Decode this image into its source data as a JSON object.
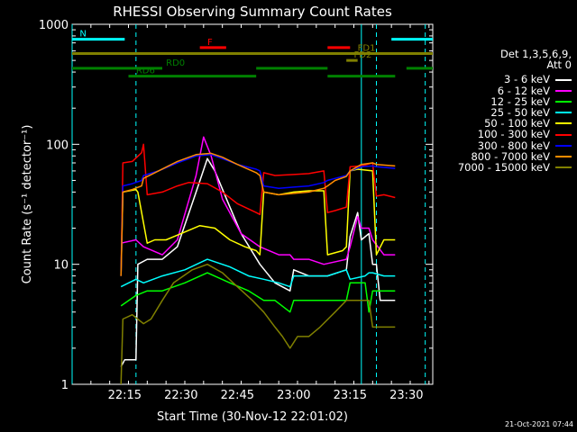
{
  "chart_data": {
    "type": "line",
    "title": "RHESSI Observing Summary Count Rates",
    "xlabel": "Start Time (30-Nov-12 22:01:02)",
    "ylabel": "Count Rate (s⁻¹ detector⁻¹)",
    "yscale": "log",
    "ylim": [
      1,
      1000
    ],
    "xlim": [
      0,
      96
    ],
    "x_unit": "minutes after 22:01:02",
    "xticks": [
      {
        "label": "22:15",
        "x": 14
      },
      {
        "label": "22:30",
        "x": 29
      },
      {
        "label": "22:45",
        "x": 44
      },
      {
        "label": "23:00",
        "x": 59
      },
      {
        "label": "23:15",
        "x": 74
      },
      {
        "label": "23:30",
        "x": 89
      }
    ],
    "yticks": [
      {
        "label": "1",
        "y": 1
      },
      {
        "label": "10",
        "y": 10
      },
      {
        "label": "100",
        "y": 100
      },
      {
        "label": "1000",
        "y": 1000
      }
    ],
    "series": [
      {
        "name": "3 - 6 keV",
        "color": "#ffffff",
        "points": [
          [
            13,
            1.4
          ],
          [
            14,
            1.6
          ],
          [
            17,
            1.6
          ],
          [
            17.5,
            10
          ],
          [
            20,
            11
          ],
          [
            24,
            11
          ],
          [
            28,
            14
          ],
          [
            33,
            40
          ],
          [
            36,
            76
          ],
          [
            38,
            60
          ],
          [
            42,
            30
          ],
          [
            45,
            18
          ],
          [
            50,
            10
          ],
          [
            54,
            7
          ],
          [
            58,
            6
          ],
          [
            59,
            9
          ],
          [
            63,
            8
          ],
          [
            68,
            8
          ],
          [
            73,
            9
          ],
          [
            74,
            17
          ],
          [
            76,
            27
          ],
          [
            77,
            16
          ],
          [
            79,
            18
          ],
          [
            80,
            10
          ],
          [
            81,
            10
          ],
          [
            82,
            5
          ],
          [
            86,
            5
          ]
        ]
      },
      {
        "name": "6 - 12 keV",
        "color": "#ff00ff",
        "points": [
          [
            13,
            15
          ],
          [
            17,
            16
          ],
          [
            19,
            14
          ],
          [
            24,
            12
          ],
          [
            28,
            16
          ],
          [
            33,
            55
          ],
          [
            35,
            115
          ],
          [
            37,
            80
          ],
          [
            40,
            35
          ],
          [
            45,
            18
          ],
          [
            50,
            14
          ],
          [
            55,
            12
          ],
          [
            58,
            12
          ],
          [
            59,
            11
          ],
          [
            63,
            11
          ],
          [
            67,
            10
          ],
          [
            73,
            11
          ],
          [
            74,
            14
          ],
          [
            76,
            25
          ],
          [
            77,
            20
          ],
          [
            79,
            20
          ],
          [
            80,
            16
          ],
          [
            83,
            12
          ],
          [
            86,
            12
          ]
        ]
      },
      {
        "name": "12 - 25 keV",
        "color": "#00ff00",
        "points": [
          [
            13,
            4.5
          ],
          [
            17,
            5.5
          ],
          [
            20,
            6
          ],
          [
            24,
            6
          ],
          [
            30,
            7
          ],
          [
            36,
            8.5
          ],
          [
            42,
            7
          ],
          [
            47,
            6
          ],
          [
            51,
            5
          ],
          [
            54,
            5
          ],
          [
            58,
            4
          ],
          [
            59,
            5
          ],
          [
            64,
            5
          ],
          [
            68,
            5
          ],
          [
            73,
            5
          ],
          [
            74,
            7
          ],
          [
            78,
            7
          ],
          [
            79,
            4
          ],
          [
            80,
            6
          ],
          [
            83,
            6
          ],
          [
            86,
            6
          ]
        ]
      },
      {
        "name": "25 - 50 keV",
        "color": "#00ffff",
        "points": [
          [
            13,
            6.5
          ],
          [
            17,
            7.5
          ],
          [
            19,
            7
          ],
          [
            24,
            8
          ],
          [
            30,
            9
          ],
          [
            36,
            11
          ],
          [
            42,
            9.5
          ],
          [
            47,
            8
          ],
          [
            51,
            7.5
          ],
          [
            55,
            7
          ],
          [
            58,
            6.5
          ],
          [
            59,
            8
          ],
          [
            63,
            8
          ],
          [
            68,
            8
          ],
          [
            73,
            9
          ],
          [
            74,
            7.5
          ],
          [
            78,
            8
          ],
          [
            79,
            8.5
          ],
          [
            80,
            8.5
          ],
          [
            83,
            8
          ],
          [
            86,
            8
          ]
        ]
      },
      {
        "name": "50 - 100 keV",
        "color": "#ffff00",
        "points": [
          [
            13,
            8
          ],
          [
            13.5,
            40
          ],
          [
            17,
            42
          ],
          [
            17.5,
            40
          ],
          [
            20,
            15
          ],
          [
            22,
            16
          ],
          [
            25,
            16
          ],
          [
            29,
            18
          ],
          [
            34,
            21
          ],
          [
            38,
            20
          ],
          [
            42,
            16
          ],
          [
            46,
            14
          ],
          [
            49,
            13
          ],
          [
            50,
            12
          ],
          [
            51,
            40
          ],
          [
            55,
            38
          ],
          [
            59,
            40
          ],
          [
            63,
            41
          ],
          [
            67,
            41
          ],
          [
            68,
            12
          ],
          [
            72,
            13
          ],
          [
            73,
            14
          ],
          [
            74,
            60
          ],
          [
            76,
            62
          ],
          [
            80,
            60
          ],
          [
            81,
            12
          ],
          [
            83,
            16
          ],
          [
            86,
            16
          ]
        ]
      },
      {
        "name": "100 - 300 keV",
        "color": "#ff0000",
        "points": [
          [
            13,
            8
          ],
          [
            13.5,
            70
          ],
          [
            16,
            72
          ],
          [
            18.5,
            85
          ],
          [
            19,
            100
          ],
          [
            20,
            38
          ],
          [
            24,
            40
          ],
          [
            28,
            45
          ],
          [
            31,
            48
          ],
          [
            36,
            47
          ],
          [
            40,
            40
          ],
          [
            44,
            32
          ],
          [
            49,
            27
          ],
          [
            50,
            26
          ],
          [
            51,
            58
          ],
          [
            54,
            55
          ],
          [
            59,
            56
          ],
          [
            63,
            57
          ],
          [
            67,
            60
          ],
          [
            68,
            27
          ],
          [
            70,
            28
          ],
          [
            73,
            30
          ],
          [
            74,
            65
          ],
          [
            77,
            66
          ],
          [
            80,
            70
          ],
          [
            81,
            37
          ],
          [
            83,
            38
          ],
          [
            86,
            36
          ]
        ]
      },
      {
        "name": "300 - 800 keV",
        "color": "#0000ff",
        "points": [
          [
            13,
            8
          ],
          [
            13.5,
            45
          ],
          [
            16,
            47
          ],
          [
            18.5,
            50
          ],
          [
            19,
            55
          ],
          [
            23,
            60
          ],
          [
            28,
            70
          ],
          [
            33,
            80
          ],
          [
            37,
            82
          ],
          [
            40,
            76
          ],
          [
            44,
            68
          ],
          [
            49,
            62
          ],
          [
            50,
            60
          ],
          [
            51,
            45
          ],
          [
            55,
            43
          ],
          [
            59,
            44
          ],
          [
            63,
            45
          ],
          [
            67,
            48
          ],
          [
            68,
            50
          ],
          [
            70,
            52
          ],
          [
            73,
            55
          ],
          [
            74,
            60
          ],
          [
            77,
            65
          ],
          [
            80,
            66
          ],
          [
            81,
            65
          ],
          [
            86,
            63
          ]
        ]
      },
      {
        "name": "800 - 7000 keV",
        "color": "#ff8c00",
        "points": [
          [
            13,
            8
          ],
          [
            13.5,
            40
          ],
          [
            16,
            42
          ],
          [
            18.5,
            45
          ],
          [
            19,
            52
          ],
          [
            23,
            60
          ],
          [
            28,
            72
          ],
          [
            33,
            82
          ],
          [
            37,
            84
          ],
          [
            40,
            78
          ],
          [
            44,
            68
          ],
          [
            49,
            58
          ],
          [
            50,
            55
          ],
          [
            51,
            40
          ],
          [
            55,
            38
          ],
          [
            59,
            39
          ],
          [
            63,
            40
          ],
          [
            67,
            43
          ],
          [
            68,
            45
          ],
          [
            70,
            50
          ],
          [
            73,
            54
          ],
          [
            74,
            60
          ],
          [
            77,
            68
          ],
          [
            80,
            70
          ],
          [
            81,
            68
          ],
          [
            86,
            66
          ]
        ]
      },
      {
        "name": "7000 - 15000 keV",
        "color": "#808000",
        "points": [
          [
            13,
            1
          ],
          [
            13.5,
            3.5
          ],
          [
            16,
            3.8
          ],
          [
            19,
            3.2
          ],
          [
            21,
            3.5
          ],
          [
            24,
            5
          ],
          [
            27,
            7
          ],
          [
            32,
            9
          ],
          [
            36,
            10
          ],
          [
            40,
            8.5
          ],
          [
            44,
            6.5
          ],
          [
            48,
            5
          ],
          [
            51,
            4
          ],
          [
            54,
            3
          ],
          [
            56,
            2.5
          ],
          [
            58,
            2
          ],
          [
            60,
            2.5
          ],
          [
            63,
            2.5
          ],
          [
            66,
            3
          ],
          [
            70,
            4
          ],
          [
            73,
            5
          ],
          [
            74,
            5
          ],
          [
            78,
            5
          ],
          [
            79,
            5
          ],
          [
            80,
            3
          ],
          [
            83,
            3
          ],
          [
            86,
            3
          ]
        ]
      }
    ],
    "flags": [
      {
        "label": "N",
        "color": "#00ffff",
        "y": 750,
        "segments": [
          [
            0,
            14
          ],
          [
            85,
            96
          ]
        ]
      },
      {
        "label": "F",
        "color": "#ff0000",
        "y": 640,
        "segments": [
          [
            34,
            41
          ],
          [
            68,
            74
          ]
        ]
      },
      {
        "label": "FD1",
        "color": "#808000",
        "y": 570,
        "segments": [
          [
            0,
            96
          ]
        ]
      },
      {
        "label": "FD2",
        "color": "#808000",
        "y": 500,
        "segments": [
          [
            73,
            76
          ]
        ]
      },
      {
        "label": "RD0",
        "color": "#008000",
        "y": 430,
        "segments": [
          [
            0,
            24
          ],
          [
            49,
            68
          ],
          [
            89,
            96
          ]
        ]
      },
      {
        "label": "RD6",
        "color": "#008000",
        "y": 370,
        "segments": [
          [
            15,
            49
          ],
          [
            68,
            86
          ]
        ]
      }
    ],
    "vlines": [
      {
        "x": 0,
        "color": "#00ffff",
        "style": "solid"
      },
      {
        "x": 17,
        "color": "#00ffff",
        "style": "dashed"
      },
      {
        "x": 77,
        "color": "#00ffff",
        "style": "solid"
      },
      {
        "x": 81,
        "color": "#00ffff",
        "style": "dashed"
      },
      {
        "x": 94,
        "color": "#00ffff",
        "style": "dashed"
      }
    ],
    "grid": false,
    "legend_position": "right"
  },
  "legend": {
    "header1": "Det 1,3,5,6,9,",
    "header2": "Att 0",
    "items": [
      {
        "label": "3 - 6 keV",
        "color": "#ffffff"
      },
      {
        "label": "6 - 12 keV",
        "color": "#ff00ff"
      },
      {
        "label": "12 - 25 keV",
        "color": "#00ff00"
      },
      {
        "label": "25 - 50 keV",
        "color": "#00ffff"
      },
      {
        "label": "50 - 100 keV",
        "color": "#ffff00"
      },
      {
        "label": "100 - 300 keV",
        "color": "#ff0000"
      },
      {
        "label": "300 - 800 keV",
        "color": "#0000ff"
      },
      {
        "label": "800 - 7000 keV",
        "color": "#ff8c00"
      },
      {
        "label": "7000 - 15000 keV",
        "color": "#808000"
      }
    ]
  },
  "footer": {
    "timestamp": "21-Oct-2021 07:44"
  }
}
